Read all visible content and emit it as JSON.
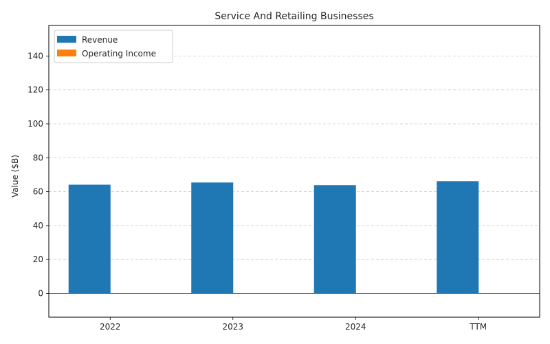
{
  "chart_data": {
    "type": "bar",
    "title": "Service And Retailing Businesses",
    "xlabel": "",
    "ylabel": "Value ($B)",
    "categories": [
      "2022",
      "2023",
      "2024",
      "TTM"
    ],
    "series": [
      {
        "name": "Revenue",
        "values": [
          64.1,
          65.4,
          63.8,
          66.2
        ],
        "color": "#1f77b4"
      },
      {
        "name": "Operating Income",
        "values": [
          0,
          0,
          0,
          0
        ],
        "color": "#ff7f0e"
      }
    ],
    "ylim": [
      -14,
      158
    ],
    "yticks": [
      0,
      20,
      40,
      60,
      80,
      100,
      120,
      140
    ],
    "grid": true,
    "legend": "top-left",
    "zero_line_color": "#1f77b4"
  }
}
